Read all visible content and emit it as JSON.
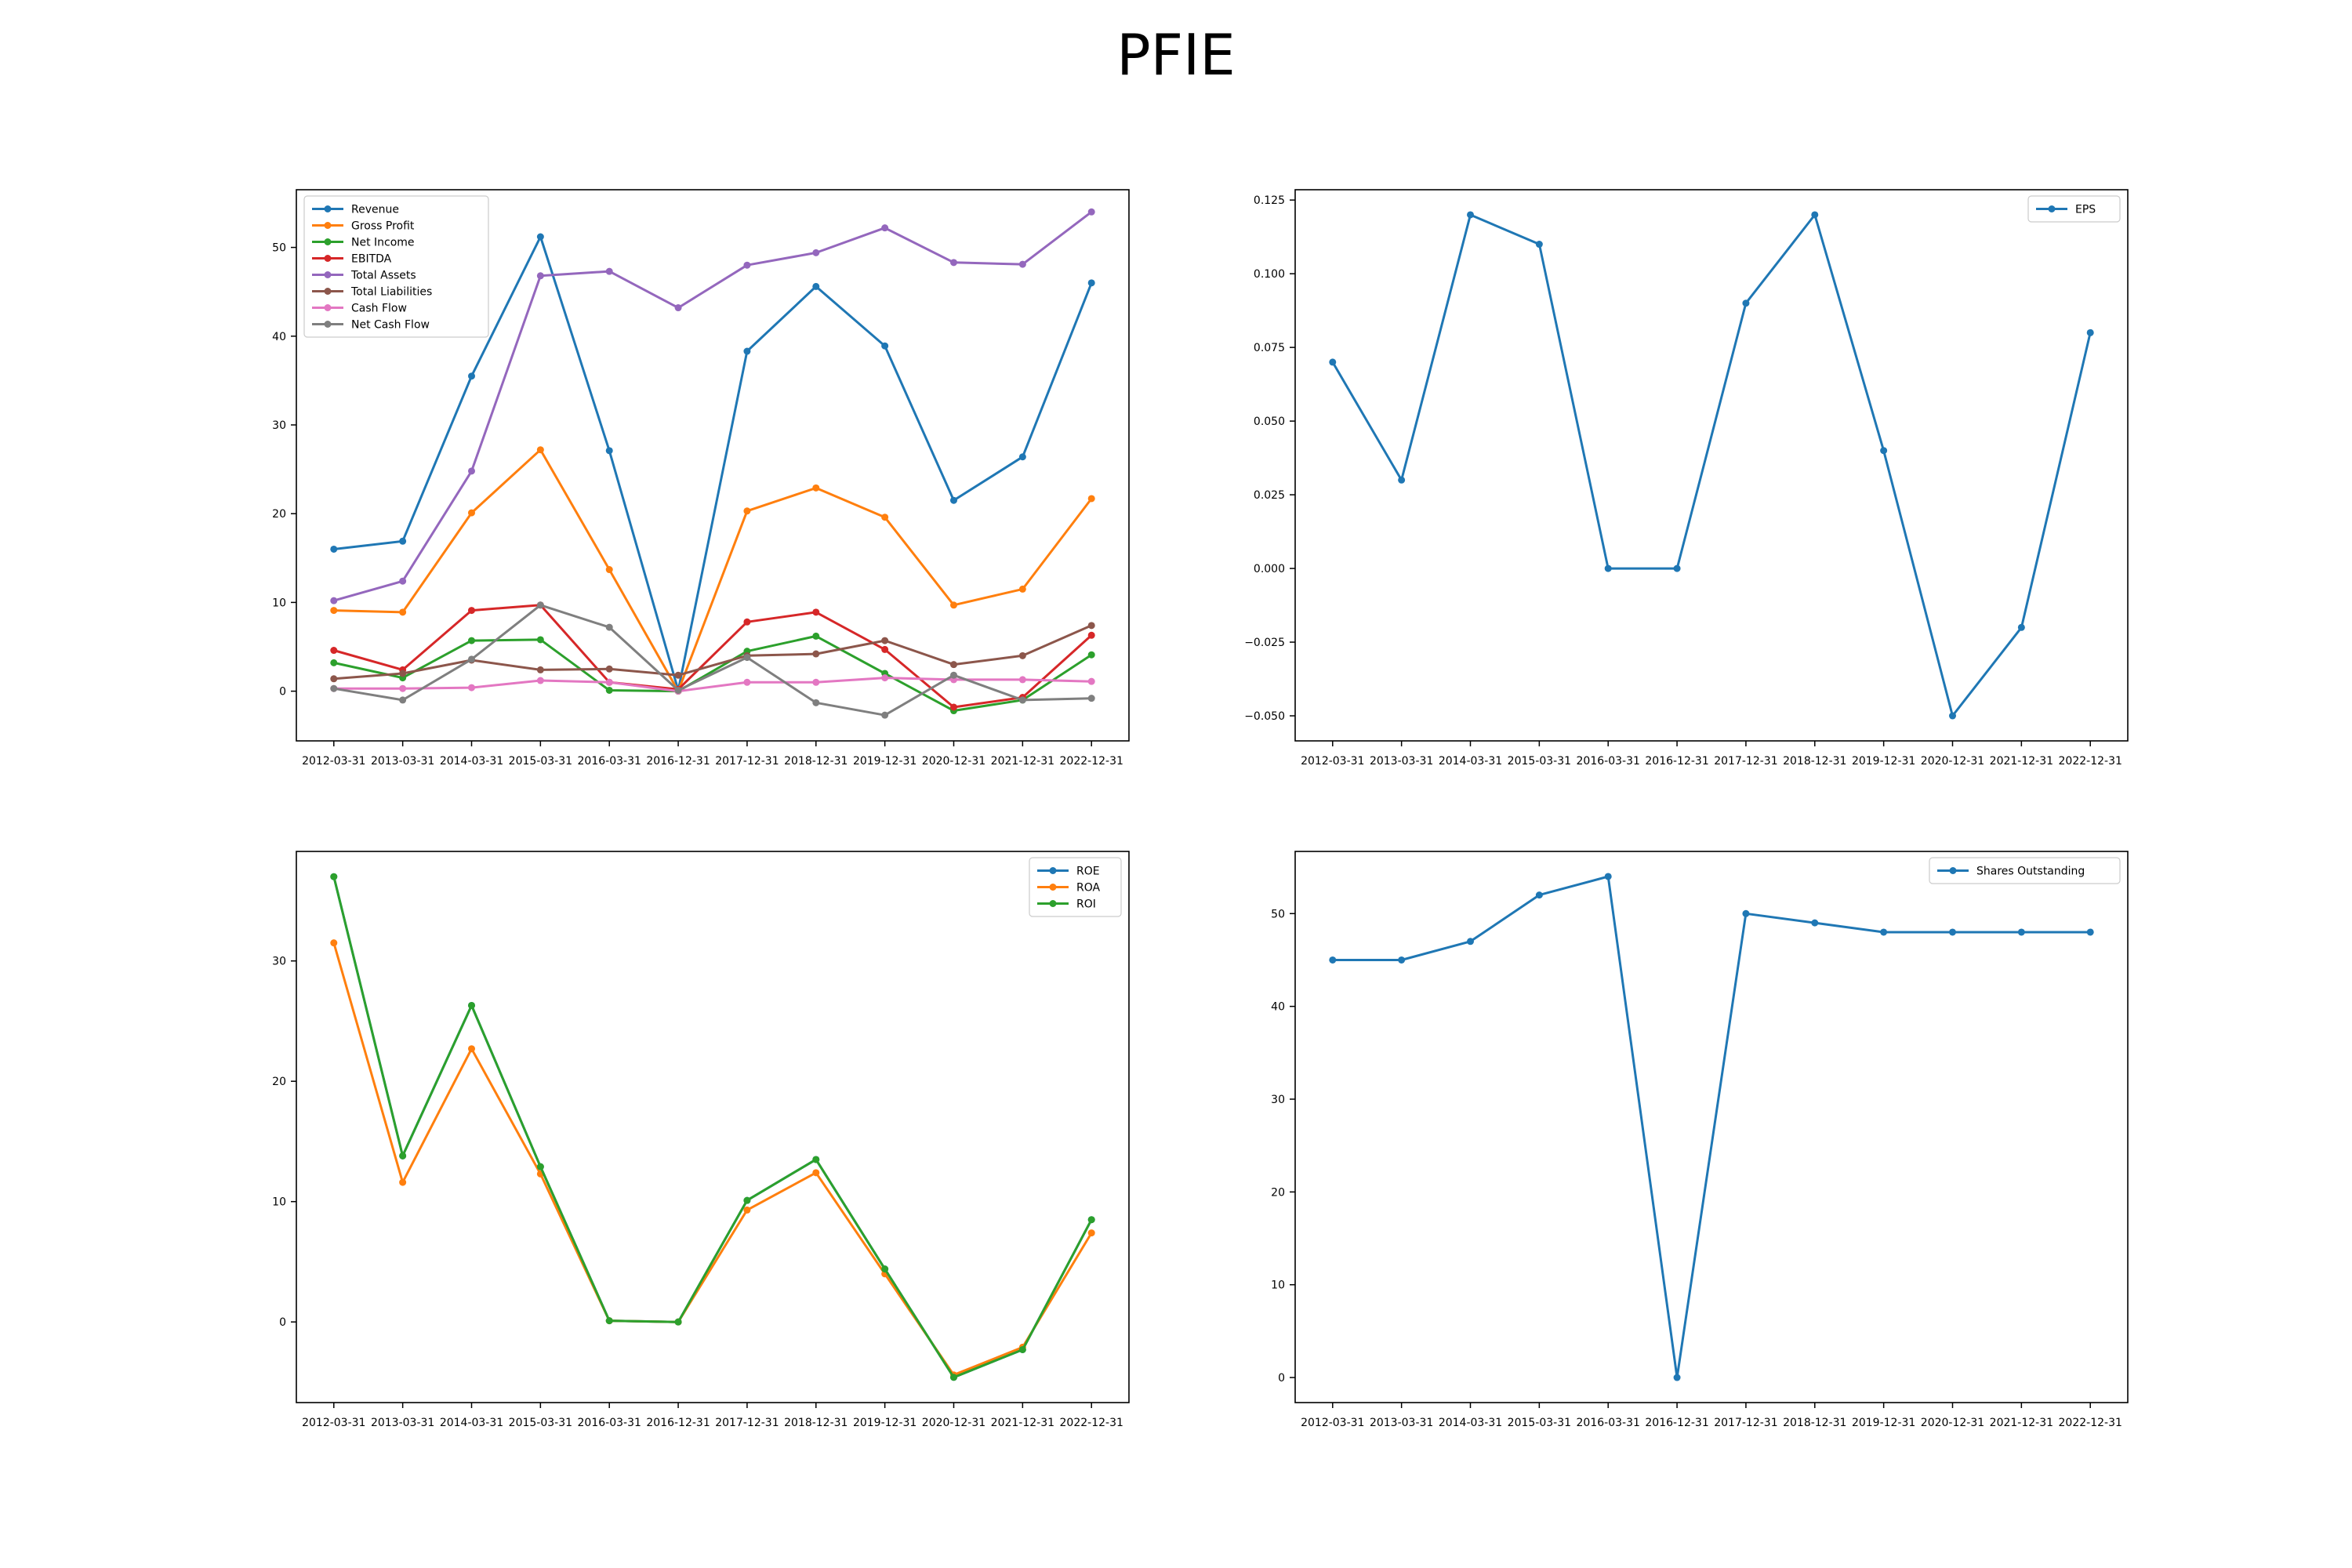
{
  "title": "PFIE",
  "chart_data": [
    {
      "type": "line",
      "panel": "top-left",
      "categories": [
        "2012-03-31",
        "2013-03-31",
        "2014-03-31",
        "2015-03-31",
        "2016-03-31",
        "2016-12-31",
        "2017-12-31",
        "2018-12-31",
        "2019-12-31",
        "2020-12-31",
        "2021-12-31",
        "2022-12-31"
      ],
      "ylim": [
        -5.6,
        56.5
      ],
      "yticks": [
        0,
        10,
        20,
        30,
        40,
        50
      ],
      "legend_position": "upper-left",
      "series": [
        {
          "name": "Revenue",
          "color": "#1f77b4",
          "values": [
            16.0,
            16.9,
            35.5,
            51.2,
            27.1,
            0.1,
            38.3,
            45.6,
            38.9,
            21.5,
            26.4,
            46.0
          ]
        },
        {
          "name": "Gross Profit",
          "color": "#ff7f0e",
          "values": [
            9.1,
            8.9,
            20.1,
            27.2,
            13.7,
            0.0,
            20.3,
            22.9,
            19.6,
            9.7,
            11.5,
            21.7
          ]
        },
        {
          "name": "Net Income",
          "color": "#2ca02c",
          "values": [
            3.2,
            1.5,
            5.7,
            5.8,
            0.1,
            0.0,
            4.5,
            6.2,
            2.0,
            -2.2,
            -1.0,
            4.1
          ]
        },
        {
          "name": "EBITDA",
          "color": "#d62728",
          "values": [
            4.6,
            2.4,
            9.1,
            9.7,
            1.0,
            0.2,
            7.8,
            8.9,
            4.7,
            -1.8,
            -0.7,
            6.3
          ]
        },
        {
          "name": "Total Assets",
          "color": "#9467bd",
          "values": [
            10.2,
            12.4,
            24.8,
            46.8,
            47.3,
            43.2,
            48.0,
            49.4,
            52.2,
            48.3,
            48.1,
            54.0
          ]
        },
        {
          "name": "Total Liabilities",
          "color": "#8c564b",
          "values": [
            1.4,
            2.0,
            3.5,
            2.4,
            2.5,
            1.8,
            4.0,
            4.2,
            5.7,
            3.0,
            4.0,
            7.4
          ]
        },
        {
          "name": "Cash Flow",
          "color": "#e377c2",
          "values": [
            0.3,
            0.3,
            0.4,
            1.2,
            1.0,
            0.0,
            1.0,
            1.0,
            1.5,
            1.3,
            1.3,
            1.1
          ]
        },
        {
          "name": "Net Cash Flow",
          "color": "#7f7f7f",
          "values": [
            0.3,
            -1.0,
            3.6,
            9.7,
            7.2,
            0.1,
            3.8,
            -1.3,
            -2.7,
            1.8,
            -1.0,
            -0.8
          ]
        }
      ]
    },
    {
      "type": "line",
      "panel": "top-right",
      "categories": [
        "2012-03-31",
        "2013-03-31",
        "2014-03-31",
        "2015-03-31",
        "2016-03-31",
        "2016-12-31",
        "2017-12-31",
        "2018-12-31",
        "2019-12-31",
        "2020-12-31",
        "2021-12-31",
        "2022-12-31"
      ],
      "ylim": [
        -0.0585,
        0.1285
      ],
      "yticks": [
        -0.05,
        -0.025,
        0.0,
        0.025,
        0.05,
        0.075,
        0.1,
        0.125
      ],
      "ytick_labels": [
        "−0.050",
        "−0.025",
        "0.000",
        "0.025",
        "0.050",
        "0.075",
        "0.100",
        "0.125"
      ],
      "legend_position": "upper-right",
      "series": [
        {
          "name": "EPS",
          "color": "#1f77b4",
          "values": [
            0.07,
            0.03,
            0.12,
            0.11,
            0.0,
            0.0,
            0.09,
            0.12,
            0.04,
            -0.05,
            -0.02,
            0.08
          ]
        }
      ]
    },
    {
      "type": "line",
      "panel": "bottom-left",
      "categories": [
        "2012-03-31",
        "2013-03-31",
        "2014-03-31",
        "2015-03-31",
        "2016-03-31",
        "2016-12-31",
        "2017-12-31",
        "2018-12-31",
        "2019-12-31",
        "2020-12-31",
        "2021-12-31",
        "2022-12-31"
      ],
      "ylim": [
        -6.7,
        39.1
      ],
      "yticks": [
        0,
        10,
        20,
        30
      ],
      "legend_position": "upper-right",
      "series": [
        {
          "name": "ROE",
          "color": "#1f77b4",
          "values": [
            37.0,
            13.8,
            26.3,
            12.9,
            0.1,
            0.0,
            10.1,
            13.5,
            4.4,
            -4.6,
            -2.3,
            8.5
          ]
        },
        {
          "name": "ROA",
          "color": "#ff7f0e",
          "values": [
            31.5,
            11.6,
            22.7,
            12.3,
            0.1,
            0.0,
            9.3,
            12.4,
            4.0,
            -4.4,
            -2.1,
            7.4
          ]
        },
        {
          "name": "ROI",
          "color": "#2ca02c",
          "values": [
            37.0,
            13.8,
            26.3,
            12.9,
            0.1,
            0.0,
            10.1,
            13.5,
            4.4,
            -4.6,
            -2.3,
            8.5
          ]
        }
      ]
    },
    {
      "type": "line",
      "panel": "bottom-right",
      "categories": [
        "2012-03-31",
        "2013-03-31",
        "2014-03-31",
        "2015-03-31",
        "2016-03-31",
        "2016-12-31",
        "2017-12-31",
        "2018-12-31",
        "2019-12-31",
        "2020-12-31",
        "2021-12-31",
        "2022-12-31"
      ],
      "ylim": [
        -2.7,
        56.7
      ],
      "yticks": [
        0,
        10,
        20,
        30,
        40,
        50
      ],
      "legend_position": "upper-right",
      "series": [
        {
          "name": "Shares Outstanding",
          "color": "#1f77b4",
          "values": [
            45,
            45,
            47,
            52,
            54,
            0,
            50,
            49,
            48,
            48,
            48,
            48
          ]
        }
      ]
    }
  ]
}
